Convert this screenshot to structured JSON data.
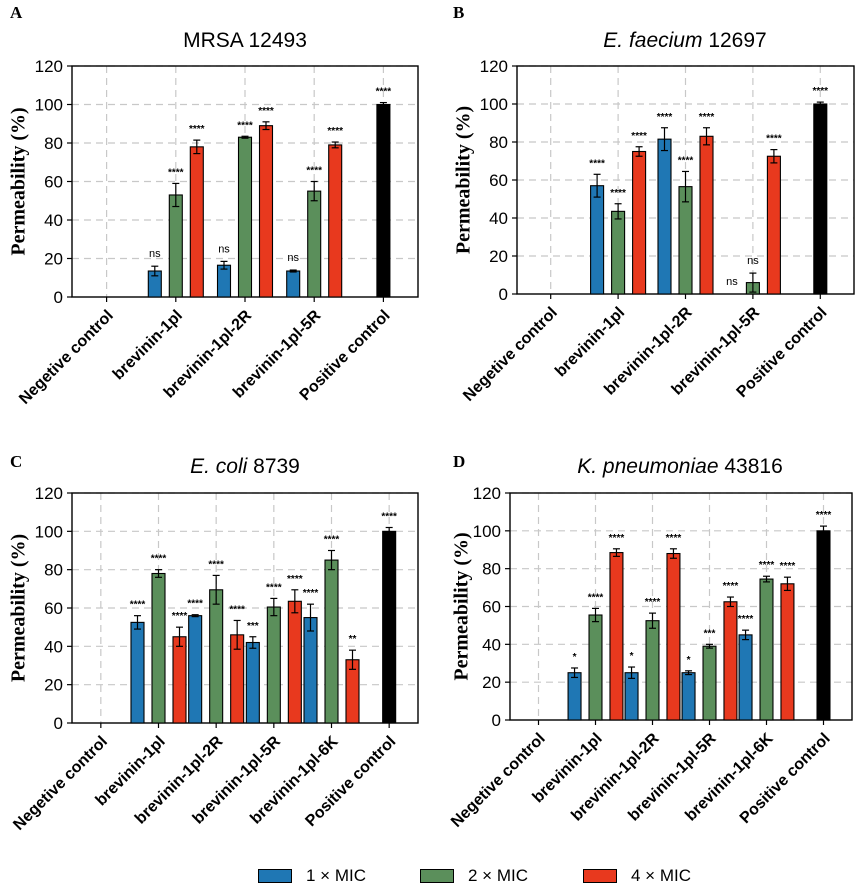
{
  "legend": {
    "items": [
      {
        "label": "1 × MIC",
        "color": "#1f77b4"
      },
      {
        "label": "2 × MIC",
        "color": "#5b8f5b"
      },
      {
        "label": "4 × MIC",
        "color": "#e8391e"
      }
    ]
  },
  "colors": {
    "mic1": "#1f77b4",
    "mic2": "#5b8f5b",
    "mic4": "#e8391e",
    "positive": "#000000"
  },
  "chart_data": [
    {
      "panel": "A",
      "type": "bar",
      "title": "MRSA 12493",
      "title_italic": "",
      "title_rest": "",
      "ylabel": "Permeability (%)",
      "ylim": [
        0,
        120
      ],
      "yticks": [
        "0",
        "20",
        "40",
        "60",
        "80",
        "100",
        "120"
      ],
      "categories": [
        "Negetive control",
        "brevinin-1pl",
        "brevinin-1pl-2R",
        "brevinin-1pl-5R",
        "Positive control"
      ],
      "groups": [
        {
          "bars": []
        },
        {
          "bars": [
            {
              "s": 0,
              "v": 13.5,
              "e": 2.5,
              "l": "ns"
            },
            {
              "s": 1,
              "v": 53,
              "e": 6,
              "l": "****"
            },
            {
              "s": 2,
              "v": 78,
              "e": 3.5,
              "l": "****"
            }
          ]
        },
        {
          "bars": [
            {
              "s": 0,
              "v": 16.5,
              "e": 2,
              "l": "ns"
            },
            {
              "s": 1,
              "v": 83,
              "e": 0.5,
              "l": "****"
            },
            {
              "s": 2,
              "v": 89,
              "e": 2,
              "l": "****"
            }
          ]
        },
        {
          "bars": [
            {
              "s": 0,
              "v": 13.5,
              "e": 0.5,
              "l": "ns"
            },
            {
              "s": 1,
              "v": 55,
              "e": 5,
              "l": "****"
            },
            {
              "s": 2,
              "v": 79,
              "e": 1.5,
              "l": "****"
            }
          ]
        },
        {
          "bars": [
            {
              "s": 3,
              "v": 100,
              "e": 1,
              "l": "****"
            }
          ]
        }
      ]
    },
    {
      "panel": "B",
      "type": "bar",
      "title": "",
      "title_italic": "E. faecium",
      "title_rest": " 12697",
      "ylabel": "Permeability (%)",
      "ylim": [
        0,
        120
      ],
      "yticks": [
        "0",
        "20",
        "40",
        "60",
        "80",
        "100",
        "120"
      ],
      "categories": [
        "Negetive control",
        "brevinin-1pl",
        "brevinin-1pl-2R",
        "brevinin-1pl-5R",
        "Positive control"
      ],
      "groups": [
        {
          "bars": []
        },
        {
          "bars": [
            {
              "s": 0,
              "v": 57,
              "e": 6,
              "l": "****"
            },
            {
              "s": 1,
              "v": 43.5,
              "e": 4,
              "l": "****"
            },
            {
              "s": 2,
              "v": 75,
              "e": 2.5,
              "l": "****"
            }
          ]
        },
        {
          "bars": [
            {
              "s": 0,
              "v": 81.5,
              "e": 6,
              "l": "****"
            },
            {
              "s": 1,
              "v": 56.5,
              "e": 8,
              "l": "****"
            },
            {
              "s": 2,
              "v": 83,
              "e": 4.5,
              "l": "****"
            }
          ]
        },
        {
          "bars": [
            {
              "s": 0,
              "v": 0,
              "e": 0,
              "l": "ns"
            },
            {
              "s": 1,
              "v": 6,
              "e": 5,
              "l": "ns"
            },
            {
              "s": 2,
              "v": 72.5,
              "e": 3.5,
              "l": "****"
            }
          ]
        },
        {
          "bars": [
            {
              "s": 3,
              "v": 100,
              "e": 1,
              "l": "****"
            }
          ]
        }
      ]
    },
    {
      "panel": "C",
      "type": "bar",
      "title": "",
      "title_italic": "E. coli",
      "title_rest": " 8739",
      "ylabel": "Permeability (%)",
      "ylim": [
        0,
        120
      ],
      "yticks": [
        "0",
        "20",
        "40",
        "60",
        "80",
        "100",
        "120"
      ],
      "categories": [
        "Negetive control",
        "brevinin-1pl",
        "brevinin-1pl-2R",
        "brevinin-1pl-5R",
        "brevinin-1pl-6K",
        "Positive control"
      ],
      "groups": [
        {
          "bars": []
        },
        {
          "bars": [
            {
              "s": 0,
              "v": 52.5,
              "e": 3.5,
              "l": "****"
            },
            {
              "s": 1,
              "v": 78,
              "e": 2,
              "l": "****"
            },
            {
              "s": 2,
              "v": 45,
              "e": 5,
              "l": "****"
            }
          ]
        },
        {
          "bars": [
            {
              "s": 0,
              "v": 56,
              "e": 0.5,
              "l": "****"
            },
            {
              "s": 1,
              "v": 69.5,
              "e": 7.5,
              "l": "****"
            },
            {
              "s": 2,
              "v": 46,
              "e": 7.5,
              "l": "****"
            }
          ]
        },
        {
          "bars": [
            {
              "s": 0,
              "v": 42,
              "e": 3,
              "l": "***"
            },
            {
              "s": 1,
              "v": 60.5,
              "e": 4.5,
              "l": "****"
            },
            {
              "s": 2,
              "v": 63.5,
              "e": 6,
              "l": "****"
            }
          ]
        },
        {
          "bars": [
            {
              "s": 0,
              "v": 55,
              "e": 7,
              "l": "****"
            },
            {
              "s": 1,
              "v": 85,
              "e": 5,
              "l": "****"
            },
            {
              "s": 2,
              "v": 33,
              "e": 5,
              "l": "**"
            }
          ]
        },
        {
          "bars": [
            {
              "s": 3,
              "v": 100,
              "e": 2,
              "l": "****"
            }
          ]
        }
      ]
    },
    {
      "panel": "D",
      "type": "bar",
      "title": "",
      "title_italic": "K. pneumoniae",
      "title_rest": " 43816",
      "ylabel": "Permeability (%)",
      "ylim": [
        0,
        120
      ],
      "yticks": [
        "0",
        "20",
        "40",
        "60",
        "80",
        "100",
        "120"
      ],
      "categories": [
        "Negetive control",
        "brevinin-1pl",
        "brevinin-1pl-2R",
        "brevinin-1pl-5R",
        "brevinin-1pl-6K",
        "Positive control"
      ],
      "groups": [
        {
          "bars": []
        },
        {
          "bars": [
            {
              "s": 0,
              "v": 25,
              "e": 2.5,
              "l": "*"
            },
            {
              "s": 1,
              "v": 55.5,
              "e": 3.5,
              "l": "****"
            },
            {
              "s": 2,
              "v": 88.5,
              "e": 2,
              "l": "****"
            }
          ]
        },
        {
          "bars": [
            {
              "s": 0,
              "v": 25,
              "e": 3,
              "l": "*"
            },
            {
              "s": 1,
              "v": 52.5,
              "e": 4,
              "l": "****"
            },
            {
              "s": 2,
              "v": 88,
              "e": 2.5,
              "l": "****"
            }
          ]
        },
        {
          "bars": [
            {
              "s": 0,
              "v": 25,
              "e": 1,
              "l": "*"
            },
            {
              "s": 1,
              "v": 39,
              "e": 1,
              "l": "***"
            },
            {
              "s": 2,
              "v": 62.5,
              "e": 2.5,
              "l": "****"
            }
          ]
        },
        {
          "bars": [
            {
              "s": 0,
              "v": 45,
              "e": 2.5,
              "l": "****"
            },
            {
              "s": 1,
              "v": 74.5,
              "e": 1.5,
              "l": "****"
            },
            {
              "s": 2,
              "v": 72,
              "e": 3.5,
              "l": "****"
            }
          ]
        },
        {
          "bars": [
            {
              "s": 3,
              "v": 100,
              "e": 2.5,
              "l": "****"
            }
          ]
        }
      ]
    }
  ]
}
